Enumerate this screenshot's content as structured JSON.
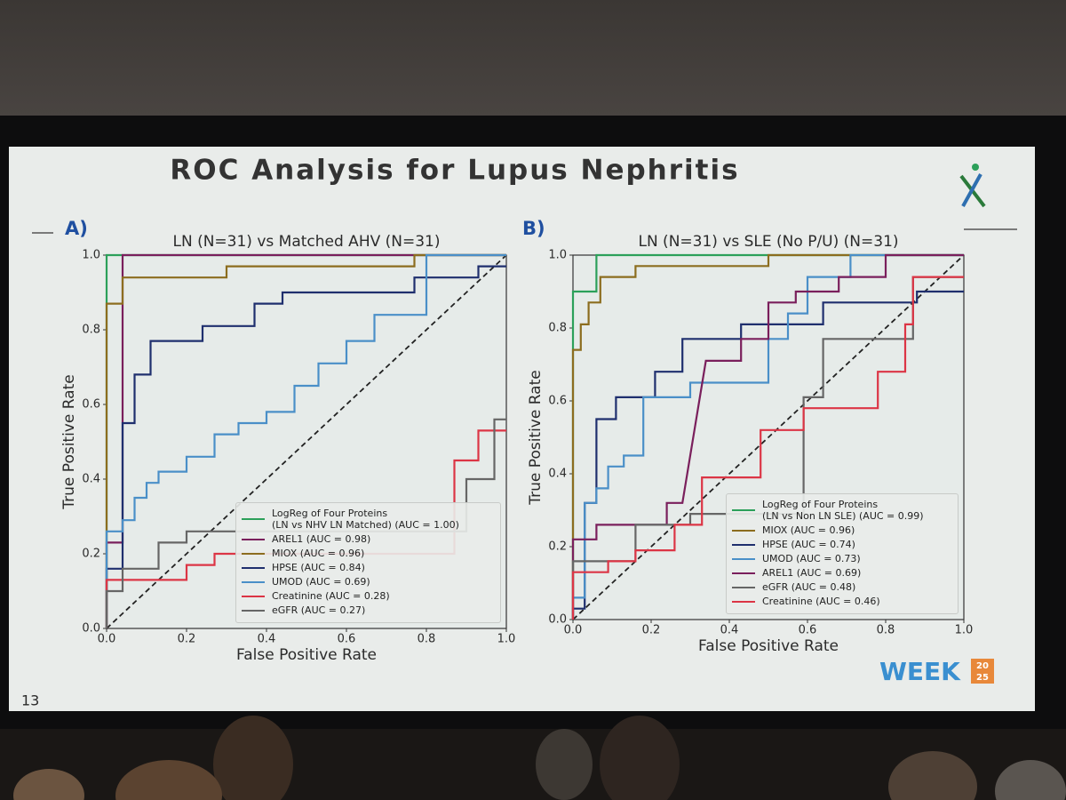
{
  "slide_title": "ROC Analysis for Lupus Nephritis",
  "slide_number": "13",
  "logo": "WEEK",
  "logo_year": [
    "20",
    "25"
  ],
  "chart_data": [
    {
      "type": "line",
      "panel": "A)",
      "title": "LN (N=31) vs Matched AHV (N=31)",
      "xlabel": "False Positive Rate",
      "ylabel": "True Positive Rate",
      "xlim": [
        0,
        1
      ],
      "ylim": [
        0,
        1
      ],
      "xticks": [
        {
          "value": 0,
          "label": "0.0"
        },
        0.2,
        0.4,
        0.6,
        0.8,
        {
          "value": 1,
          "label": "1.0"
        }
      ],
      "yticks": [
        {
          "value": 0,
          "label": "0.0"
        },
        0.2,
        0.4,
        0.6,
        0.8,
        {
          "value": 1,
          "label": "1.0"
        }
      ],
      "legend": "lower right",
      "series": [
        {
          "name": "LogReg of Four Proteins\n(LN vs NHV LN Matched) (AUC = 1.00)",
          "color": "#2ca05a",
          "x": [
            0,
            0,
            1
          ],
          "values": [
            0,
            1,
            1
          ]
        },
        {
          "name": "AREL1 (AUC = 0.98)",
          "color": "#7a1f5c",
          "x": [
            0,
            0,
            0.04,
            0.04,
            1
          ],
          "values": [
            0,
            0.23,
            0.23,
            1,
            1
          ]
        },
        {
          "name": "MIOX (AUC = 0.96)",
          "color": "#8c6d1f",
          "x": [
            0,
            0,
            0.04,
            0.04,
            0.3,
            0.3,
            0.77,
            0.77,
            1
          ],
          "values": [
            0,
            0.87,
            0.87,
            0.94,
            0.94,
            0.97,
            0.97,
            1,
            1
          ]
        },
        {
          "name": "HPSE (AUC = 0.84)",
          "color": "#1f2f6e",
          "x": [
            0,
            0,
            0.04,
            0.04,
            0.07,
            0.07,
            0.11,
            0.11,
            0.24,
            0.24,
            0.37,
            0.37,
            0.44,
            0.44,
            0.77,
            0.77,
            0.93,
            0.93,
            1
          ],
          "values": [
            0,
            0.16,
            0.16,
            0.55,
            0.55,
            0.68,
            0.68,
            0.77,
            0.77,
            0.81,
            0.81,
            0.87,
            0.87,
            0.9,
            0.9,
            0.94,
            0.94,
            0.97,
            0.97
          ]
        },
        {
          "name": "UMOD (AUC = 0.69)",
          "color": "#4a8fc8",
          "x": [
            0,
            0,
            0.04,
            0.04,
            0.07,
            0.07,
            0.1,
            0.1,
            0.13,
            0.13,
            0.2,
            0.2,
            0.27,
            0.27,
            0.33,
            0.33,
            0.4,
            0.4,
            0.47,
            0.47,
            0.53,
            0.53,
            0.6,
            0.6,
            0.67,
            0.67,
            0.8,
            0.8,
            1
          ],
          "values": [
            0,
            0.26,
            0.26,
            0.29,
            0.29,
            0.35,
            0.35,
            0.39,
            0.39,
            0.42,
            0.42,
            0.46,
            0.46,
            0.52,
            0.52,
            0.55,
            0.55,
            0.58,
            0.58,
            0.65,
            0.65,
            0.71,
            0.71,
            0.77,
            0.77,
            0.84,
            0.84,
            1,
            1
          ]
        },
        {
          "name": "Creatinine (AUC = 0.28)",
          "color": "#dc3545",
          "x": [
            0,
            0,
            0.2,
            0.2,
            0.27,
            0.27,
            0.87,
            0.87,
            0.93,
            0.93,
            1
          ],
          "values": [
            0,
            0.13,
            0.13,
            0.17,
            0.17,
            0.2,
            0.2,
            0.45,
            0.45,
            0.53,
            0.53
          ]
        },
        {
          "name": "eGFR (AUC = 0.27)",
          "color": "#666666",
          "x": [
            0,
            0,
            0.04,
            0.04,
            0.13,
            0.13,
            0.2,
            0.2,
            0.9,
            0.9,
            0.97,
            0.97,
            1
          ],
          "values": [
            0,
            0.1,
            0.1,
            0.16,
            0.16,
            0.23,
            0.23,
            0.26,
            0.26,
            0.4,
            0.4,
            0.56,
            0.56
          ]
        }
      ]
    },
    {
      "type": "line",
      "panel": "B)",
      "title": "LN (N=31) vs SLE (No P/U) (N=31)",
      "xlabel": "False Positive Rate",
      "ylabel": "True Positive Rate",
      "xlim": [
        0,
        1
      ],
      "ylim": [
        0,
        1
      ],
      "xticks": [
        {
          "value": 0,
          "label": "0.0"
        },
        0.2,
        0.4,
        0.6,
        0.8,
        {
          "value": 1,
          "label": "1.0"
        }
      ],
      "yticks": [
        {
          "value": 0,
          "label": "0.0"
        },
        0.2,
        0.4,
        0.6,
        0.8,
        {
          "value": 1,
          "label": "1.0"
        }
      ],
      "legend": "lower right",
      "series": [
        {
          "name": "LogReg of Four Proteins\n(LN vs Non LN SLE) (AUC = 0.99)",
          "color": "#2ca05a",
          "x": [
            0,
            0,
            0.06,
            0.06,
            1
          ],
          "values": [
            0,
            0.9,
            0.9,
            1,
            1
          ]
        },
        {
          "name": "MIOX (AUC = 0.96)",
          "color": "#8c6d1f",
          "x": [
            0,
            0,
            0.02,
            0.02,
            0.04,
            0.04,
            0.07,
            0.07,
            0.16,
            0.16,
            0.5,
            0.5,
            1
          ],
          "values": [
            0,
            0.74,
            0.74,
            0.81,
            0.81,
            0.87,
            0.87,
            0.94,
            0.94,
            0.97,
            0.97,
            1,
            1
          ]
        },
        {
          "name": "HPSE (AUC = 0.74)",
          "color": "#1f2f6e",
          "x": [
            0,
            0,
            0.03,
            0.03,
            0.06,
            0.06,
            0.11,
            0.11,
            0.21,
            0.21,
            0.28,
            0.28,
            0.43,
            0.43,
            0.64,
            0.64,
            0.71,
            0.71,
            0.88,
            0.88,
            1
          ],
          "values": [
            0,
            0.03,
            0.03,
            0.32,
            0.32,
            0.55,
            0.55,
            0.61,
            0.61,
            0.68,
            0.68,
            0.77,
            0.77,
            0.81,
            0.81,
            0.87,
            0.87,
            0.87,
            0.87,
            0.9,
            0.9
          ]
        },
        {
          "name": "UMOD (AUC = 0.73)",
          "color": "#4a8fc8",
          "x": [
            0,
            0,
            0.03,
            0.03,
            0.06,
            0.06,
            0.09,
            0.09,
            0.13,
            0.13,
            0.18,
            0.18,
            0.3,
            0.3,
            0.5,
            0.5,
            0.55,
            0.55,
            0.6,
            0.6,
            0.71,
            0.71,
            1
          ],
          "values": [
            0,
            0.06,
            0.06,
            0.32,
            0.32,
            0.36,
            0.36,
            0.42,
            0.42,
            0.45,
            0.45,
            0.61,
            0.61,
            0.65,
            0.65,
            0.77,
            0.77,
            0.84,
            0.84,
            0.94,
            0.94,
            1,
            1
          ]
        },
        {
          "name": "AREL1 (AUC = 0.69)",
          "color": "#7a1f5c",
          "x": [
            0,
            0,
            0.06,
            0.06,
            0.24,
            0.24,
            0.28,
            0.34,
            0.43,
            0.43,
            0.5,
            0.5,
            0.57,
            0.57,
            0.68,
            0.68,
            0.8,
            0.8,
            1
          ],
          "values": [
            0,
            0.22,
            0.22,
            0.26,
            0.26,
            0.32,
            0.32,
            0.71,
            0.71,
            0.77,
            0.77,
            0.87,
            0.87,
            0.9,
            0.9,
            0.94,
            0.94,
            1,
            1
          ]
        },
        {
          "name": "eGFR (AUC = 0.48)",
          "color": "#666666",
          "x": [
            0,
            0,
            0.16,
            0.16,
            0.3,
            0.3,
            0.59,
            0.59,
            0.64,
            0.64,
            0.87,
            0.87,
            1
          ],
          "values": [
            0,
            0.16,
            0.16,
            0.26,
            0.26,
            0.29,
            0.29,
            0.61,
            0.61,
            0.77,
            0.77,
            0.94,
            0.94
          ]
        },
        {
          "name": "Creatinine (AUC = 0.46)",
          "color": "#dc3545",
          "x": [
            0,
            0,
            0.09,
            0.09,
            0.16,
            0.16,
            0.26,
            0.26,
            0.33,
            0.33,
            0.48,
            0.48,
            0.59,
            0.59,
            0.78,
            0.78,
            0.85,
            0.85,
            0.87,
            0.87,
            1
          ],
          "values": [
            0,
            0.13,
            0.13,
            0.16,
            0.16,
            0.19,
            0.19,
            0.26,
            0.26,
            0.39,
            0.39,
            0.52,
            0.52,
            0.58,
            0.58,
            0.68,
            0.68,
            0.81,
            0.81,
            0.94,
            0.94
          ]
        }
      ]
    }
  ]
}
